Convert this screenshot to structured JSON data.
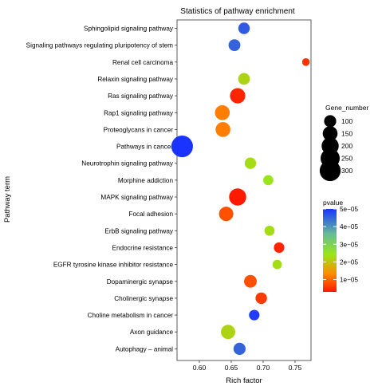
{
  "chart_data": {
    "type": "scatter",
    "title": "Statistics of pathway enrichment",
    "xlabel": "Rich factor",
    "ylabel": "Pathway term",
    "xlim": [
      0.565,
      0.775
    ],
    "x_ticks": [
      0.6,
      0.65,
      0.7,
      0.75
    ],
    "x_tick_labels": [
      "0.60",
      "0.65",
      "0.70",
      "0.75"
    ],
    "grid": false,
    "legend_placement": "right",
    "categories": [
      "Sphingolipid signaling pathway",
      "Signaling pathways regulating pluripotency of stem",
      "Renal cell carcinoma",
      "Relaxin signaling pathway",
      "Ras signaling pathway",
      "Rap1 signaling pathway",
      "Proteoglycans in cancer",
      "Pathways in cancer",
      "Neurotrophin signaling pathway",
      "Morphine addiction",
      "MAPK signaling pathway",
      "Focal adhesion",
      "ErbB signaling pathway",
      "Endocrine resistance",
      "EGFR tyrosine kinase inhibitor resistance",
      "Dopaminergic synapse",
      "Cholinergic synapse",
      "Choline metabolism in cancer",
      "Axon guidance",
      "Autophagy – animal"
    ],
    "points": [
      {
        "term": "Sphingolipid signaling pathway",
        "rich_factor": 0.67,
        "gene_number": 90,
        "pvalue": 4.6e-05
      },
      {
        "term": "Signaling pathways regulating pluripotency of stem",
        "rich_factor": 0.655,
        "gene_number": 95,
        "pvalue": 4.5e-05
      },
      {
        "term": "Renal cell carcinoma",
        "rich_factor": 0.767,
        "gene_number": 40,
        "pvalue": 5e-06
      },
      {
        "term": "Relaxin signaling pathway",
        "rich_factor": 0.67,
        "gene_number": 95,
        "pvalue": 2.2e-05
      },
      {
        "term": "Ras signaling pathway",
        "rich_factor": 0.66,
        "gene_number": 160,
        "pvalue": 4e-06
      },
      {
        "term": "Rap1 signaling pathway",
        "rich_factor": 0.636,
        "gene_number": 150,
        "pvalue": 1.2e-05
      },
      {
        "term": "Proteoglycans in cancer",
        "rich_factor": 0.637,
        "gene_number": 150,
        "pvalue": 1.2e-05
      },
      {
        "term": "Pathways in cancer",
        "rich_factor": 0.573,
        "gene_number": 320,
        "pvalue": 5e-05
      },
      {
        "term": "Neurotrophin signaling pathway",
        "rich_factor": 0.68,
        "gene_number": 90,
        "pvalue": 2.3e-05
      },
      {
        "term": "Morphine addiction",
        "rich_factor": 0.708,
        "gene_number": 70,
        "pvalue": 2.4e-05
      },
      {
        "term": "MAPK signaling pathway",
        "rich_factor": 0.66,
        "gene_number": 200,
        "pvalue": 3e-06
      },
      {
        "term": "Focal adhesion",
        "rich_factor": 0.642,
        "gene_number": 140,
        "pvalue": 8e-06
      },
      {
        "term": "ErbB signaling pathway",
        "rich_factor": 0.71,
        "gene_number": 70,
        "pvalue": 2.3e-05
      },
      {
        "term": "Endocrine resistance",
        "rich_factor": 0.725,
        "gene_number": 75,
        "pvalue": 4e-06
      },
      {
        "term": "EGFR tyrosine kinase inhibitor resistance",
        "rich_factor": 0.722,
        "gene_number": 60,
        "pvalue": 2.3e-05
      },
      {
        "term": "Dopaminergic synapse",
        "rich_factor": 0.68,
        "gene_number": 110,
        "pvalue": 8e-06
      },
      {
        "term": "Cholinergic synapse",
        "rich_factor": 0.697,
        "gene_number": 90,
        "pvalue": 6e-06
      },
      {
        "term": "Choline metabolism in cancer",
        "rich_factor": 0.686,
        "gene_number": 75,
        "pvalue": 4.9e-05
      },
      {
        "term": "Axon guidance",
        "rich_factor": 0.645,
        "gene_number": 140,
        "pvalue": 2.2e-05
      },
      {
        "term": "Autophagy – animal",
        "rich_factor": 0.663,
        "gene_number": 100,
        "pvalue": 4.5e-05
      }
    ],
    "size_legend": {
      "title": "Gene_number",
      "values": [
        100,
        150,
        200,
        250,
        300
      ],
      "labels": [
        "100",
        "150",
        "200",
        "250",
        "300"
      ]
    },
    "color_legend": {
      "title": "pvalue",
      "values": [
        5e-05,
        4e-05,
        3e-05,
        2e-05,
        1e-05
      ],
      "labels": [
        "5e−05",
        "4e−05",
        "3e−05",
        "2e−05",
        "1e−05"
      ],
      "colors": {
        "low": "#ff1a00",
        "q1": "#ff8c00",
        "mid": "#99e619",
        "q3": "#66bb99",
        "high": "#1a33ff"
      }
    }
  }
}
